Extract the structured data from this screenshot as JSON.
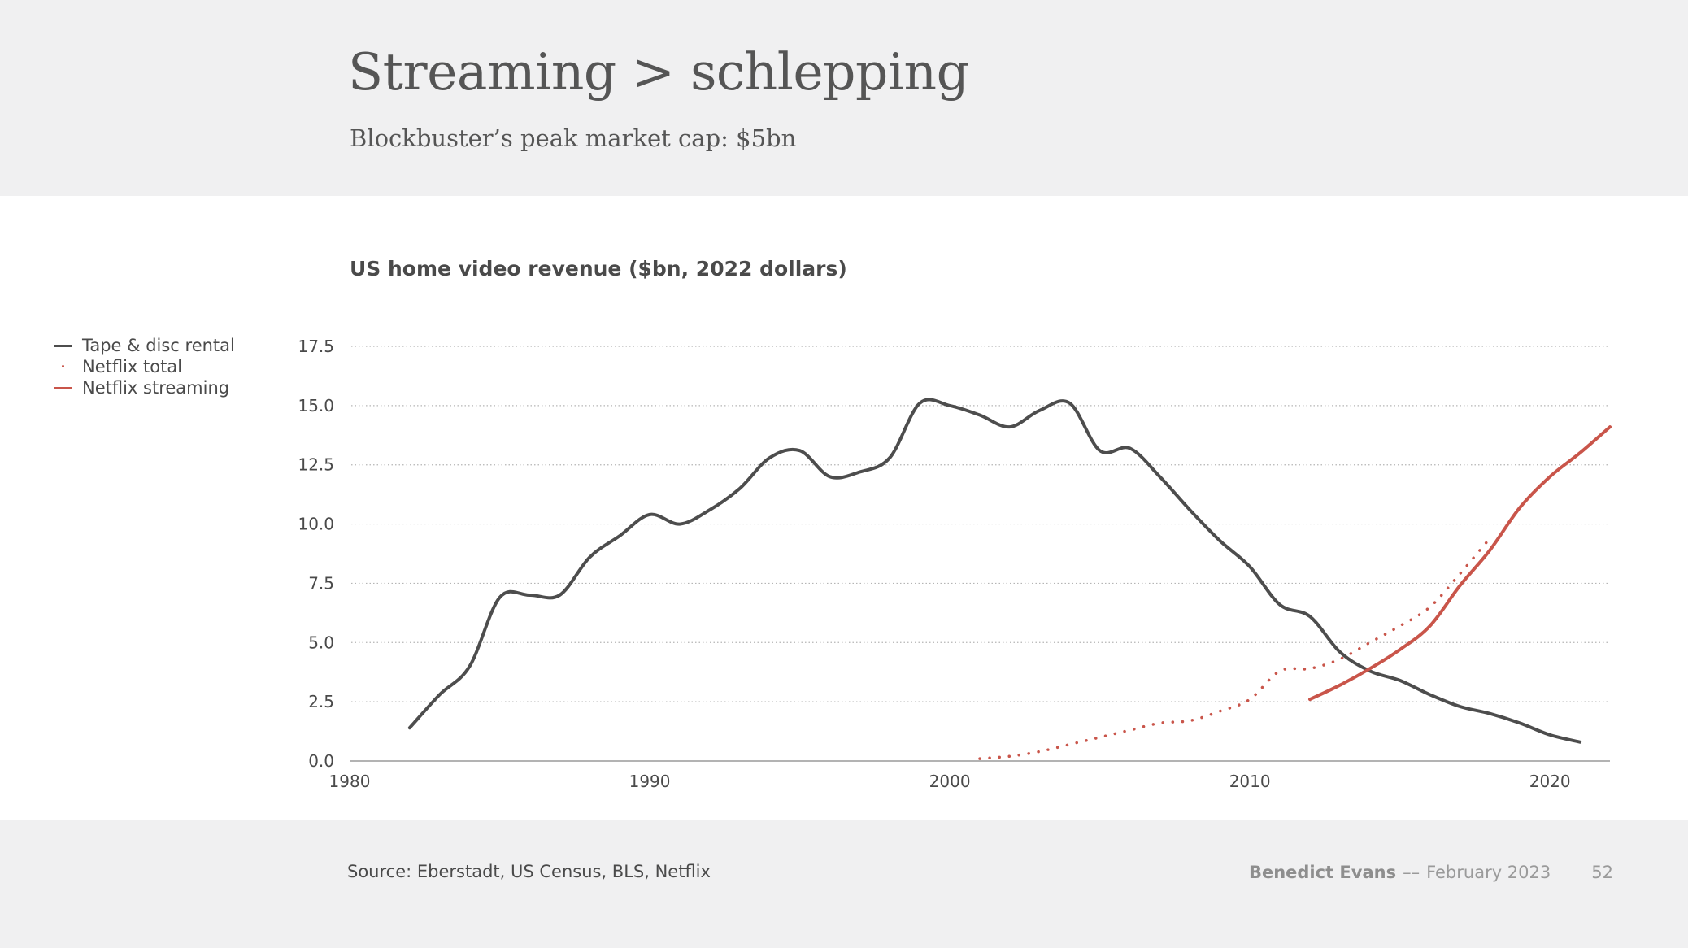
{
  "slide": {
    "title": "Streaming > schlepping",
    "subtitle": "Blockbuster’s peak market cap: $5bn",
    "source": "Source: Eberstadt, US Census, BLS, Netflix",
    "author": "Benedict Evans",
    "separator": "––",
    "date": "February 2023",
    "page_number": "52"
  },
  "colors": {
    "rental": "#4d4d4d",
    "netflix": "#c9554a",
    "grid": "#b5b5b5",
    "header_bg": "#f0f0f1"
  },
  "chart_data": {
    "type": "line",
    "title": "US home video revenue ($bn, 2022 dollars)",
    "xlabel": "",
    "ylabel": "",
    "xlim": [
      1980,
      2022
    ],
    "ylim": [
      0,
      17.5
    ],
    "x_ticks": [
      "1980",
      "1990",
      "2000",
      "2010",
      "2020"
    ],
    "y_ticks": [
      "0.0",
      "2.5",
      "5.0",
      "7.5",
      "10.0",
      "12.5",
      "15.0",
      "17.5"
    ],
    "grid": "horizontal dotted",
    "legend_position": "top-left",
    "series": [
      {
        "name": "Tape & disc rental",
        "style": "solid",
        "color": "#4d4d4d",
        "x": [
          1982,
          1983,
          1984,
          1985,
          1986,
          1987,
          1988,
          1989,
          1990,
          1991,
          1992,
          1993,
          1994,
          1995,
          1996,
          1997,
          1998,
          1999,
          2000,
          2001,
          2002,
          2003,
          2004,
          2005,
          2006,
          2007,
          2008,
          2009,
          2010,
          2011,
          2012,
          2013,
          2014,
          2015,
          2016,
          2017,
          2018,
          2019,
          2020,
          2021
        ],
        "y": [
          1.4,
          2.8,
          4.0,
          6.9,
          7.0,
          7.0,
          8.6,
          9.5,
          10.4,
          10.0,
          10.6,
          11.5,
          12.8,
          13.1,
          12.0,
          12.2,
          12.8,
          15.1,
          15.0,
          14.6,
          14.1,
          14.8,
          15.1,
          13.1,
          13.2,
          12.0,
          10.6,
          9.3,
          8.2,
          6.6,
          6.1,
          4.6,
          3.8,
          3.4,
          2.8,
          2.3,
          2.0,
          1.6,
          1.1,
          0.8
        ]
      },
      {
        "name": "Netflix total",
        "style": "dotted",
        "color": "#c9554a",
        "x": [
          2001,
          2002,
          2003,
          2004,
          2005,
          2006,
          2007,
          2008,
          2009,
          2010,
          2011,
          2012,
          2013,
          2014,
          2015,
          2016,
          2017,
          2018
        ],
        "y": [
          0.1,
          0.2,
          0.4,
          0.7,
          1.0,
          1.3,
          1.6,
          1.7,
          2.1,
          2.6,
          3.8,
          3.9,
          4.3,
          5.0,
          5.7,
          6.5,
          7.9,
          9.4
        ]
      },
      {
        "name": "Netflix streaming",
        "style": "solid",
        "color": "#c9554a",
        "x": [
          2012,
          2013,
          2014,
          2015,
          2016,
          2017,
          2018,
          2019,
          2020,
          2021,
          2022
        ],
        "y": [
          2.6,
          3.2,
          3.9,
          4.7,
          5.7,
          7.4,
          8.9,
          10.7,
          12.0,
          13.0,
          14.1
        ]
      }
    ]
  }
}
